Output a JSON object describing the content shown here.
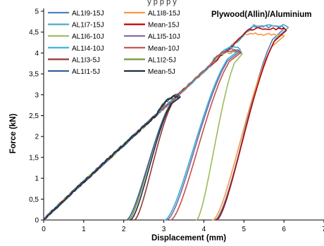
{
  "chart_data": {
    "type": "line",
    "title": "Plywood(Allin)/Aluminium",
    "header_fragment": "y   p  p   p y",
    "xlabel": "Displacement (mm)",
    "ylabel": "Force (kN)",
    "xlim": [
      0,
      7
    ],
    "ylim": [
      0,
      5
    ],
    "x_ticks": [
      "0",
      "1",
      "2",
      "3",
      "4",
      "5",
      "6",
      "7"
    ],
    "y_ticks": [
      "0",
      "0,5",
      "1",
      "1,5",
      "2",
      "2,5",
      "3",
      "3,5",
      "4",
      "4,5",
      "5"
    ],
    "grid": false,
    "legend_placement": "top-left",
    "series": [
      {
        "name": "AL1I9-15J",
        "color": "#4f81bd",
        "peak": [
          5.95,
          4.63
        ],
        "unload_end": 4.3
      },
      {
        "name": "AL1I8-15J",
        "color": "#f79646",
        "peak": [
          5.95,
          4.45
        ],
        "unload_end": 4.2
      },
      {
        "name": "AL1I7-15J",
        "color": "#4bacc6",
        "peak": [
          6.05,
          4.65
        ],
        "unload_end": 4.25
      },
      {
        "name": "Mean-15J",
        "color": "#c00000",
        "peak": [
          6.0,
          4.58
        ],
        "unload_end": 4.28
      },
      {
        "name": "AL1I6-10J",
        "color": "#9bbb59",
        "peak": [
          4.9,
          4.02
        ],
        "unload_end": 3.8
      },
      {
        "name": "AL1I5-10J",
        "color": "#8064a2",
        "peak": [
          4.85,
          4.08
        ],
        "unload_end": 3.05
      },
      {
        "name": "AL1I4-10J",
        "color": "#31b0d5",
        "peak": [
          4.85,
          4.12
        ],
        "unload_end": 3.0
      },
      {
        "name": "Mean-10J",
        "color": "#c0504d",
        "peak": [
          4.88,
          4.06
        ],
        "unload_end": 3.15
      },
      {
        "name": "AL1I3-5J",
        "color": "#943634",
        "peak": [
          3.35,
          3.0
        ],
        "unload_end": 2.25
      },
      {
        "name": "AL1I2-5J",
        "color": "#77933c",
        "peak": [
          3.3,
          2.95
        ],
        "unload_end": 2.1
      },
      {
        "name": "AL1I1-5J",
        "color": "#366092",
        "peak": [
          3.35,
          2.98
        ],
        "unload_end": 2.05
      },
      {
        "name": "Mean-5J",
        "color": "#1f2a44",
        "peak": [
          3.33,
          2.97
        ],
        "unload_end": 2.15
      }
    ]
  }
}
